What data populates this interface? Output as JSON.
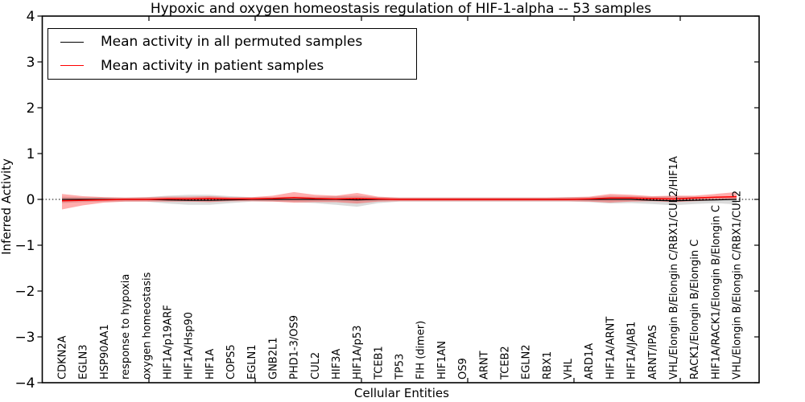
{
  "chart_data": {
    "type": "line",
    "title": "Hypoxic and oxygen homeostasis regulation of HIF-1-alpha -- 53 samples",
    "xlabel": "Cellular Entities",
    "ylabel": "Inferred Activity",
    "ylim": [
      -4,
      4
    ],
    "yticks": [
      4,
      3,
      2,
      1,
      0,
      -1,
      -2,
      -3,
      -4
    ],
    "ytick_labels": [
      "4",
      "3",
      "2",
      "1",
      "0",
      "−1",
      "−2",
      "−3",
      "−4"
    ],
    "grid": false,
    "legend": {
      "position": "upper left",
      "entries": [
        {
          "label": "Mean activity in all permuted samples",
          "color": "#000000"
        },
        {
          "label": "Mean activity in patient samples",
          "color": "#ff0000"
        }
      ]
    },
    "categories": [
      "CDKN2A",
      "EGLN3",
      "HSP90AA1",
      "response to hypoxia",
      "oxygen homeostasis",
      "HIF1A/p19ARF",
      "HIF1A/Hsp90",
      "HIF1A",
      "COPS5",
      "EGLN1",
      "GNB2L1",
      "PHD1-3/OS9",
      "CUL2",
      "HIF3A",
      "HIF1A/p53",
      "TCEB1",
      "TP53",
      "FIH (dimer)",
      "HIF1AN",
      "OS9",
      "ARNT",
      "TCEB2",
      "EGLN2",
      "RBX1",
      "VHL",
      "ARD1A",
      "HIF1A/ARNT",
      "HIF1A/JAB1",
      "ARNT/IPAS",
      "VHL/Elongin B/Elongin C/RBX1/CUL2/HIF1A",
      "RACK1/Elongin B/Elongin C",
      "HIF1A/RACK1/Elongin B/Elongin C",
      "VHL/Elongin B/Elongin C/RBX1/CUL2"
    ],
    "series": [
      {
        "name": "Mean activity in all permuted samples",
        "color": "#000000",
        "style": "solid",
        "values": [
          0,
          0,
          0,
          0,
          0,
          -0.01,
          -0.02,
          -0.02,
          -0.01,
          0,
          0,
          0,
          0,
          0,
          -0.01,
          0,
          0,
          0,
          0,
          0,
          0,
          0,
          0,
          0,
          0,
          0,
          0,
          0,
          -0.02,
          -0.03,
          -0.02,
          -0.01,
          0
        ]
      },
      {
        "name": "Mean activity in patient samples",
        "color": "#ff0000",
        "style": "solid",
        "values": [
          -0.03,
          -0.02,
          -0.01,
          0,
          0,
          0.01,
          0.01,
          0.02,
          0.01,
          0.01,
          0.02,
          0.04,
          0.02,
          0.01,
          0.02,
          0.01,
          0,
          0,
          0,
          0,
          0,
          0,
          0,
          0,
          0,
          0.01,
          0.03,
          0.03,
          0.02,
          0.01,
          0.03,
          0.05,
          0.06
        ]
      }
    ],
    "bands": [
      {
        "name": "permuted-std-band",
        "series": "Mean activity in all permuted samples",
        "color": "#999999",
        "opacity": 0.35,
        "upper": [
          0.06,
          0.05,
          0.05,
          0.04,
          0.05,
          0.08,
          0.1,
          0.1,
          0.07,
          0.05,
          0.05,
          0.06,
          0.06,
          0.07,
          0.08,
          0.05,
          0.04,
          0.04,
          0.04,
          0.04,
          0.04,
          0.04,
          0.04,
          0.04,
          0.05,
          0.05,
          0.08,
          0.07,
          0.06,
          0.07,
          0.06,
          0.05,
          0.05
        ],
        "lower": [
          -0.08,
          -0.06,
          -0.05,
          -0.05,
          -0.05,
          -0.09,
          -0.12,
          -0.12,
          -0.08,
          -0.05,
          -0.05,
          -0.06,
          -0.08,
          -0.12,
          -0.16,
          -0.08,
          -0.05,
          -0.05,
          -0.05,
          -0.05,
          -0.05,
          -0.05,
          -0.05,
          -0.05,
          -0.05,
          -0.06,
          -0.09,
          -0.08,
          -0.1,
          -0.13,
          -0.1,
          -0.08,
          -0.11
        ]
      },
      {
        "name": "patient-std-band",
        "series": "Mean activity in patient samples",
        "color": "#ff0000",
        "opacity": 0.32,
        "upper": [
          0.12,
          0.07,
          0.05,
          0.04,
          0.05,
          0.06,
          0.06,
          0.07,
          0.05,
          0.05,
          0.08,
          0.16,
          0.1,
          0.08,
          0.14,
          0.06,
          0.04,
          0.04,
          0.04,
          0.04,
          0.04,
          0.04,
          0.04,
          0.04,
          0.05,
          0.06,
          0.12,
          0.1,
          0.07,
          0.08,
          0.08,
          0.12,
          0.16
        ],
        "lower": [
          -0.22,
          -0.13,
          -0.07,
          -0.05,
          -0.05,
          -0.05,
          -0.05,
          -0.06,
          -0.04,
          -0.04,
          -0.05,
          -0.07,
          -0.06,
          -0.06,
          -0.09,
          -0.05,
          -0.04,
          -0.04,
          -0.04,
          -0.04,
          -0.04,
          -0.04,
          -0.04,
          -0.04,
          -0.04,
          -0.05,
          -0.07,
          -0.05,
          -0.04,
          -0.06,
          -0.04,
          -0.02,
          0.0
        ]
      }
    ],
    "zero_line": {
      "value": 0,
      "style": "dotted",
      "color": "#000000"
    }
  }
}
